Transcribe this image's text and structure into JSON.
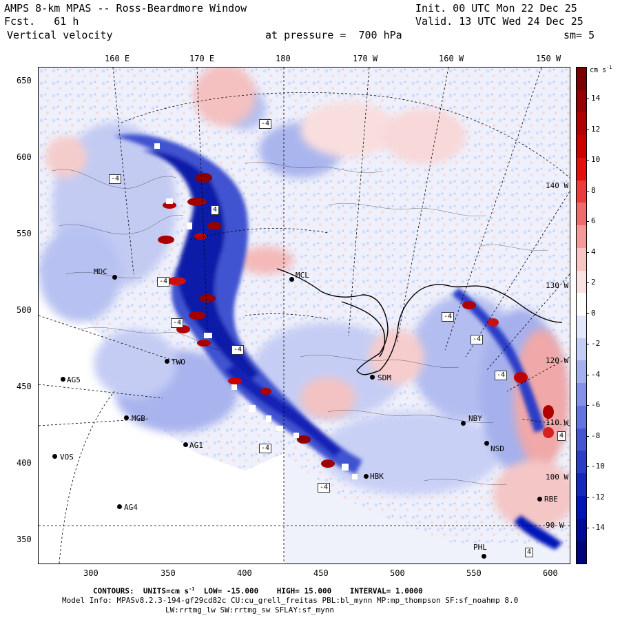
{
  "header": {
    "line1_left": "AMPS 8-km MPAS -- Ross-Beardmore Window",
    "line2_left": "Fcst.   61 h",
    "line3_left": "Vertical velocity",
    "line3_mid": "at pressure =  700 hPa",
    "line1_right": "Init. 00 UTC Mon 22 Dec 25",
    "line2_right": "Valid. 13 UTC Wed 24 Dec 25",
    "line3_right": "sm= 5"
  },
  "longitude_labels": [
    "160 E",
    "170 E",
    "180",
    "170 W",
    "160 W",
    "150 W"
  ],
  "y_axis_labels": [
    "650",
    "600",
    "550",
    "500",
    "450",
    "400",
    "350"
  ],
  "x_axis_labels": [
    "300",
    "350",
    "400",
    "450",
    "500",
    "550",
    "600"
  ],
  "right_lon_labels": [
    "140 W",
    "130 W",
    "120 W",
    "110 W",
    "100 W",
    "90 W"
  ],
  "colorbar": {
    "units": "cm s",
    "units_sup": "-1",
    "labels": [
      "14",
      "12",
      "10",
      "8",
      "6",
      "4",
      "2",
      "0",
      "-2",
      "-4",
      "-6",
      "-8",
      "-10",
      "-12",
      "-14"
    ],
    "colors_top_to_bottom": [
      "#7a0000",
      "#960000",
      "#b00000",
      "#cc0000",
      "#e41010",
      "#ee3a3a",
      "#f26a6a",
      "#f59a9a",
      "#f8c4c4",
      "#fbe2e2",
      "#ffffff",
      "#e4e8fa",
      "#c6cdf4",
      "#a6b0ee",
      "#8591e6",
      "#6573dc",
      "#4656d2",
      "#2a3cc8",
      "#1428c0",
      "#0014b8",
      "#000a9a",
      "#00047c"
    ]
  },
  "stations": [
    {
      "name": "MDC",
      "side": "left"
    },
    {
      "name": "MCL",
      "side": "right"
    },
    {
      "name": "TWO",
      "side": "right"
    },
    {
      "name": "AG5",
      "side": "right"
    },
    {
      "name": "MGB",
      "side": "right"
    },
    {
      "name": "AG1",
      "side": "right"
    },
    {
      "name": "VOS",
      "side": "right"
    },
    {
      "name": "AG4",
      "side": "right"
    },
    {
      "name": "SDM",
      "side": "right"
    },
    {
      "name": "NBY",
      "side": "right"
    },
    {
      "name": "NSD",
      "side": "right"
    },
    {
      "name": "PHL",
      "side": "left"
    },
    {
      "name": "RBE",
      "side": "right"
    },
    {
      "name": "HBK",
      "side": "right"
    }
  ],
  "contour_labels": [
    "-4",
    "-4",
    "-4",
    "-4",
    "-4",
    "-4",
    "-4",
    "-4",
    "-4",
    "4",
    "-4",
    "4",
    "4"
  ],
  "footer": {
    "contours_label": "CONTOURS:",
    "units_label": "UNITS=cm s",
    "units_sup": "-1",
    "low_label": "LOW=",
    "low_value": "-15.000",
    "high_label": "HIGH=",
    "high_value": "15.000",
    "interval_label": "INTERVAL=",
    "interval_value": "1.0000",
    "model_info": "Model Info: MPASv8.2.3-194-gf29cd82c CU:cu_grell_freitas PBL:bl_mynn MP:mp_thompson SF:sf_noahmp 8.0",
    "model_info_2": "LW:rrtmg_lw SW:rrtmg_sw SFLAY:sf_mynn"
  }
}
